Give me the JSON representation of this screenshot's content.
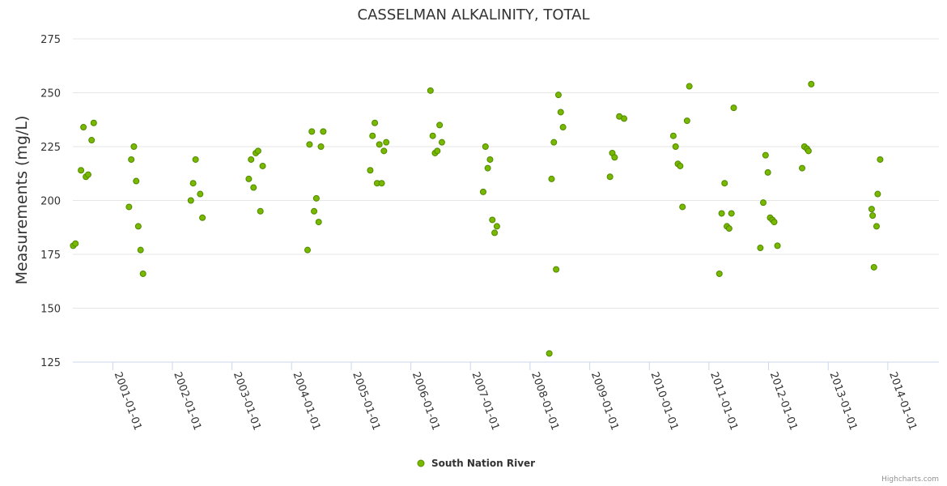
{
  "chart_data": {
    "type": "scatter",
    "title": "CASSELMAN ALKALINITY, TOTAL",
    "ylabel": "Measurements (mg/L)",
    "xlabel": "",
    "ylim": [
      125,
      275
    ],
    "yticks": [
      "275",
      "250",
      "225",
      "200",
      "175",
      "150",
      "125"
    ],
    "xlim": [
      "2000-05-01",
      "2014-11-10"
    ],
    "xticks": [
      "2001-01-01",
      "2002-01-01",
      "2003-01-01",
      "2004-01-01",
      "2005-01-01",
      "2006-01-01",
      "2007-01-01",
      "2008-01-01",
      "2009-01-01",
      "2010-01-01",
      "2011-01-01",
      "2012-01-01",
      "2013-01-01",
      "2014-01-01"
    ],
    "grid": true,
    "legend_position": "bottom-center",
    "series": [
      {
        "name": "South Nation River",
        "color": "#7ab800",
        "points": [
          [
            "2000-05-03",
            179
          ],
          [
            "2000-05-17",
            180
          ],
          [
            "2000-06-20",
            214
          ],
          [
            "2000-07-05",
            234
          ],
          [
            "2000-07-20",
            211
          ],
          [
            "2000-08-03",
            212
          ],
          [
            "2000-08-24",
            228
          ],
          [
            "2000-09-06",
            236
          ],
          [
            "2001-04-10",
            197
          ],
          [
            "2001-04-24",
            219
          ],
          [
            "2001-05-10",
            225
          ],
          [
            "2001-05-24",
            209
          ],
          [
            "2001-06-06",
            188
          ],
          [
            "2001-06-20",
            177
          ],
          [
            "2001-07-05",
            166
          ],
          [
            "2002-04-24",
            200
          ],
          [
            "2002-05-08",
            208
          ],
          [
            "2002-05-23",
            219
          ],
          [
            "2002-06-20",
            203
          ],
          [
            "2002-07-04",
            192
          ],
          [
            "2003-04-14",
            210
          ],
          [
            "2003-04-28",
            219
          ],
          [
            "2003-05-13",
            206
          ],
          [
            "2003-05-27",
            222
          ],
          [
            "2003-06-10",
            223
          ],
          [
            "2003-06-24",
            195
          ],
          [
            "2003-07-08",
            216
          ],
          [
            "2004-04-08",
            177
          ],
          [
            "2004-04-20",
            226
          ],
          [
            "2004-05-04",
            232
          ],
          [
            "2004-05-18",
            195
          ],
          [
            "2004-06-01",
            201
          ],
          [
            "2004-06-15",
            190
          ],
          [
            "2004-06-29",
            225
          ],
          [
            "2004-07-13",
            232
          ],
          [
            "2005-04-27",
            214
          ],
          [
            "2005-05-11",
            230
          ],
          [
            "2005-05-25",
            236
          ],
          [
            "2005-06-08",
            208
          ],
          [
            "2005-06-22",
            226
          ],
          [
            "2005-07-06",
            208
          ],
          [
            "2005-07-20",
            223
          ],
          [
            "2005-08-03",
            227
          ],
          [
            "2006-05-01",
            251
          ],
          [
            "2006-05-15",
            230
          ],
          [
            "2006-05-29",
            222
          ],
          [
            "2006-06-12",
            223
          ],
          [
            "2006-06-26",
            235
          ],
          [
            "2006-07-10",
            227
          ],
          [
            "2007-03-20",
            204
          ],
          [
            "2007-04-03",
            225
          ],
          [
            "2007-04-17",
            215
          ],
          [
            "2007-05-01",
            219
          ],
          [
            "2007-05-15",
            191
          ],
          [
            "2007-05-29",
            185
          ],
          [
            "2007-06-12",
            188
          ],
          [
            "2008-04-28",
            129
          ],
          [
            "2008-05-12",
            210
          ],
          [
            "2008-05-26",
            227
          ],
          [
            "2008-06-09",
            168
          ],
          [
            "2008-06-23",
            249
          ],
          [
            "2008-07-07",
            241
          ],
          [
            "2008-07-21",
            234
          ],
          [
            "2009-05-05",
            211
          ],
          [
            "2009-05-19",
            222
          ],
          [
            "2009-06-02",
            220
          ],
          [
            "2009-07-01",
            239
          ],
          [
            "2009-07-30",
            238
          ],
          [
            "2010-05-28",
            230
          ],
          [
            "2010-06-11",
            225
          ],
          [
            "2010-06-25",
            217
          ],
          [
            "2010-07-09",
            216
          ],
          [
            "2010-07-23",
            197
          ],
          [
            "2010-08-20",
            237
          ],
          [
            "2010-09-03",
            253
          ],
          [
            "2011-03-06",
            166
          ],
          [
            "2011-03-20",
            194
          ],
          [
            "2011-04-07",
            208
          ],
          [
            "2011-04-21",
            188
          ],
          [
            "2011-05-05",
            187
          ],
          [
            "2011-05-19",
            194
          ],
          [
            "2011-06-02",
            243
          ],
          [
            "2011-11-12",
            178
          ],
          [
            "2011-11-30",
            199
          ],
          [
            "2011-12-14",
            221
          ],
          [
            "2011-12-28",
            213
          ],
          [
            "2012-01-11",
            192
          ],
          [
            "2012-01-25",
            191
          ],
          [
            "2012-02-05",
            190
          ],
          [
            "2012-02-25",
            179
          ],
          [
            "2012-07-25",
            215
          ],
          [
            "2012-08-08",
            225
          ],
          [
            "2012-08-24",
            224
          ],
          [
            "2012-09-02",
            223
          ],
          [
            "2012-09-19",
            254
          ],
          [
            "2013-09-24",
            196
          ],
          [
            "2013-09-30",
            193
          ],
          [
            "2013-10-08",
            169
          ],
          [
            "2013-10-24",
            188
          ],
          [
            "2013-10-31",
            203
          ],
          [
            "2013-11-15",
            219
          ]
        ]
      }
    ],
    "credit": "Highcharts.com"
  }
}
